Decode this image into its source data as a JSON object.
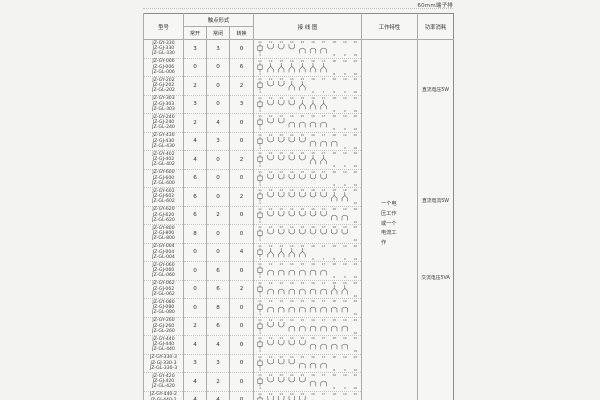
{
  "page": {
    "note": "60mm端子排"
  },
  "table": {
    "headers": {
      "model": "型号",
      "contact_form": "触点形式",
      "no": "常开",
      "nc": "常闭",
      "co": "转换",
      "wiring": "接 线 图",
      "characteristic": "工作特性",
      "power": "功率消耗"
    },
    "characteristic_text": "一个电压工作或一个电流工作",
    "power_notes": [
      "直流电压5W",
      "直流电流5W",
      "交流电压5VA"
    ],
    "terminals": {
      "top_start": 11,
      "top_end": 20,
      "bottom_start": 1,
      "bottom_end": 10
    },
    "rows": [
      {
        "models": [
          "JZ-GY-330",
          "JZ-GJ-330",
          "JZ-GL-330"
        ],
        "no": 3,
        "nc": 3,
        "co": 0
      },
      {
        "models": [
          "JZ-GY-006",
          "JZ-GJ-006",
          "JZ-GL-006"
        ],
        "no": 0,
        "nc": 0,
        "co": 6
      },
      {
        "models": [
          "JZ-GY-202",
          "JZ-GJ-202",
          "JZ-GL-202"
        ],
        "no": 2,
        "nc": 0,
        "co": 2
      },
      {
        "models": [
          "JZ-GY-303",
          "JZ-GJ-303",
          "JZ-GL-303"
        ],
        "no": 3,
        "nc": 0,
        "co": 3
      },
      {
        "models": [
          "JZ-GY-240",
          "JZ-GJ-240",
          "JZ-GL-240"
        ],
        "no": 2,
        "nc": 4,
        "co": 0
      },
      {
        "models": [
          "JZ-GY-430",
          "JZ-GJ-430",
          "JZ-GL-430"
        ],
        "no": 4,
        "nc": 3,
        "co": 0
      },
      {
        "models": [
          "JZ-GY-402",
          "JZ-GJ-402",
          "JZ-GL-402"
        ],
        "no": 4,
        "nc": 0,
        "co": 2
      },
      {
        "models": [
          "JZ-GY-600",
          "JZ-GJ-600",
          "JZ-GL-600"
        ],
        "no": 6,
        "nc": 0,
        "co": 0
      },
      {
        "models": [
          "JZ-GY-602",
          "JZ-GJ-602",
          "JZ-GL-602"
        ],
        "no": 6,
        "nc": 0,
        "co": 2
      },
      {
        "models": [
          "JZ-GY-620",
          "JZ-GJ-620",
          "JZ-GL-620"
        ],
        "no": 6,
        "nc": 2,
        "co": 0
      },
      {
        "models": [
          "JZ-GY-800",
          "JZ-GJ-800",
          "JZ-GL-800"
        ],
        "no": 8,
        "nc": 0,
        "co": 0
      },
      {
        "models": [
          "JZ-GY-004",
          "JZ-GJ-004",
          "JZ-GL-004"
        ],
        "no": 0,
        "nc": 0,
        "co": 4
      },
      {
        "models": [
          "JZ-GY-060",
          "JZ-GJ-060",
          "JZ-GL-060"
        ],
        "no": 0,
        "nc": 6,
        "co": 0
      },
      {
        "models": [
          "JZ-GY-062",
          "JZ-GJ-062",
          "JZ-GL-062"
        ],
        "no": 0,
        "nc": 6,
        "co": 2
      },
      {
        "models": [
          "JZ-GY-080",
          "JZ-GJ-080",
          "JZ-GL-080"
        ],
        "no": 0,
        "nc": 8,
        "co": 0
      },
      {
        "models": [
          "JZ-GY-260",
          "JZ-GJ-260",
          "JZ-GL-260"
        ],
        "no": 2,
        "nc": 6,
        "co": 0
      },
      {
        "models": [
          "JZ-GY-440",
          "JZ-GJ-440",
          "JZ-GL-440"
        ],
        "no": 4,
        "nc": 4,
        "co": 0
      },
      {
        "models": [
          "JZ-GY-330-3",
          "JZ-GJ-330-3",
          "JZ-GL-330-3"
        ],
        "no": 3,
        "nc": 3,
        "co": 0
      },
      {
        "models": [
          "JZ-GY-420",
          "JZ-GJ-420",
          "JZ-GL-420"
        ],
        "no": 4,
        "nc": 2,
        "co": 0
      },
      {
        "models": [
          "JZ-GY-440-2",
          "JZ-GJ-440-2",
          "JZ-GL-440-2"
        ],
        "no": 4,
        "nc": 4,
        "co": 0
      }
    ]
  }
}
